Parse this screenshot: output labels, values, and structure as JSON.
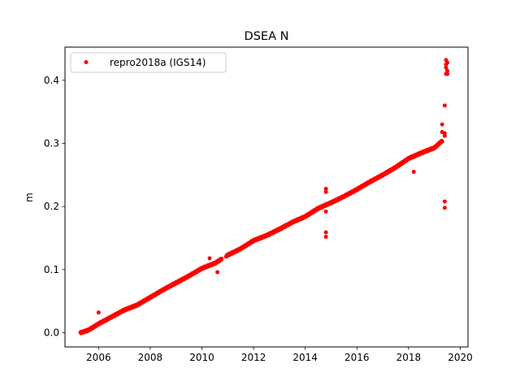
{
  "chart_data": {
    "type": "scatter",
    "title": "DSEA N",
    "xlabel": "",
    "ylabel": "m",
    "xlim": [
      2004.7,
      2020.3
    ],
    "ylim": [
      -0.0225,
      0.4525
    ],
    "xticks": [
      2006,
      2008,
      2010,
      2012,
      2014,
      2016,
      2018,
      2020
    ],
    "yticks": [
      0.0,
      0.1,
      0.2,
      0.3,
      0.4
    ],
    "xtick_labels": [
      "2006",
      "2008",
      "2010",
      "2012",
      "2014",
      "2016",
      "2018",
      "2020"
    ],
    "ytick_labels": [
      "0.0",
      "0.1",
      "0.2",
      "0.3",
      "0.4"
    ],
    "grid": false,
    "legend": {
      "position": "top-left",
      "entries": [
        "repro2018a (IGS14)"
      ]
    },
    "colors": {
      "series": "#ff0000"
    },
    "series": [
      {
        "name": "repro2018a (IGS14)",
        "trend": {
          "x": [
            2005.3,
            2005.6,
            2006.0,
            2006.5,
            2007.0,
            2007.5,
            2008.0,
            2008.5,
            2009.0,
            2009.5,
            2010.0,
            2010.5,
            2011.0,
            2011.5,
            2012.0,
            2012.5,
            2013.0,
            2013.5,
            2014.0,
            2014.5,
            2015.0,
            2015.5,
            2016.0,
            2016.5,
            2017.0,
            2017.5,
            2018.0,
            2018.5,
            2019.0,
            2019.3
          ],
          "y": [
            0.0,
            0.004,
            0.014,
            0.025,
            0.036,
            0.044,
            0.056,
            0.068,
            0.079,
            0.09,
            0.102,
            0.11,
            0.123,
            0.133,
            0.146,
            0.154,
            0.164,
            0.175,
            0.184,
            0.197,
            0.206,
            0.216,
            0.227,
            0.239,
            0.25,
            0.262,
            0.276,
            0.285,
            0.293,
            0.304
          ]
        },
        "outliers": {
          "x": [
            2006.0,
            2010.3,
            2010.6,
            2014.8,
            2014.8,
            2014.8,
            2014.8,
            2014.8,
            2018.2,
            2019.3,
            2019.3,
            2019.4,
            2019.4,
            2019.4,
            2019.4,
            2019.4,
            2019.45,
            2019.45,
            2019.45,
            2019.45,
            2019.5,
            2019.5,
            2019.5
          ],
          "y": [
            0.032,
            0.118,
            0.096,
            0.228,
            0.223,
            0.192,
            0.159,
            0.152,
            0.255,
            0.33,
            0.318,
            0.316,
            0.312,
            0.36,
            0.208,
            0.198,
            0.432,
            0.425,
            0.42,
            0.41,
            0.428,
            0.415,
            0.41
          ]
        }
      }
    ]
  }
}
